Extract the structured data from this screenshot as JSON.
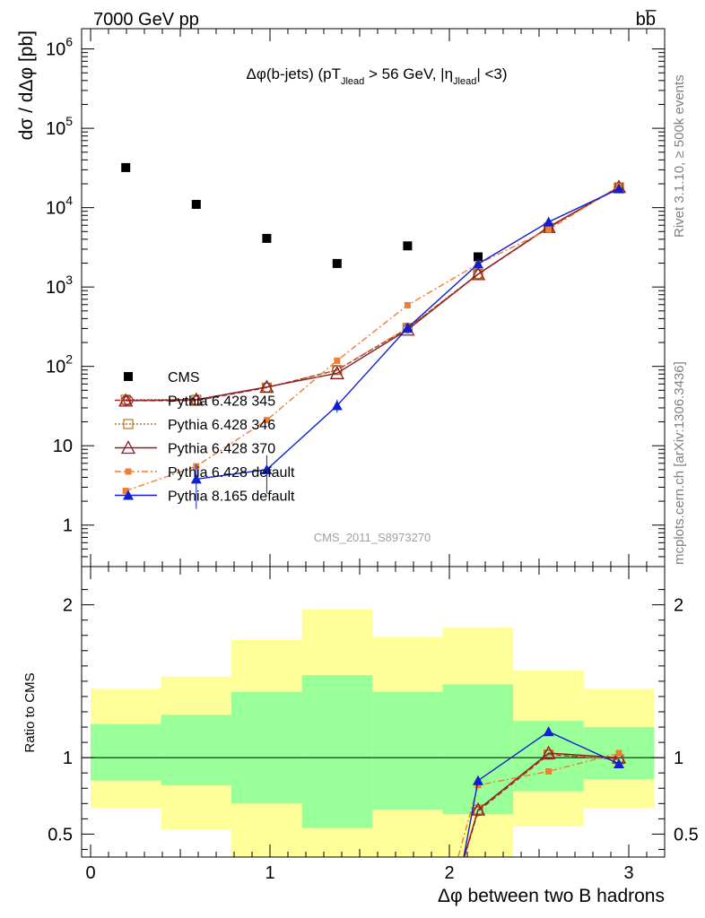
{
  "header": {
    "left": "7000 GeV pp",
    "right": "bb̅"
  },
  "side_labels": {
    "rivet": "Rivet 3.1.10, ≥ 500k events",
    "mcplots": "mcplots.cern.ch [arXiv:1306.3436]"
  },
  "chart_data": [
    {
      "type": "scatter",
      "title": "Δφ(b-jets) (pT_Jlead > 56 GeV, |η_Jlead| <3)",
      "title_parts": {
        "a": "Δφ(b-jets) (pT",
        "sub1": "Jlead",
        "b": " >  56 GeV, |η",
        "sub2": "Jlead",
        "c": "| <3)"
      },
      "ylabel": "dσ / dΔφ [pb]",
      "yscale": "log",
      "ylim": [
        0.3,
        1800000
      ],
      "xlim": [
        -0.05,
        3.2
      ],
      "watermark": "CMS_2011_S8973270",
      "y_ticks": [
        {
          "value": 1000000,
          "base": "10",
          "exp": "6"
        },
        {
          "value": 100000,
          "base": "10",
          "exp": "5"
        },
        {
          "value": 10000,
          "base": "10",
          "exp": "4"
        },
        {
          "value": 1000,
          "base": "10",
          "exp": "3"
        },
        {
          "value": 100,
          "base": "10",
          "exp": "2"
        },
        {
          "value": 10,
          "base": "10",
          "exp": ""
        },
        {
          "value": 1,
          "base": "1",
          "exp": ""
        }
      ],
      "bins": [
        0.0,
        0.393,
        0.785,
        1.178,
        1.571,
        1.963,
        2.356,
        2.749,
        3.142
      ],
      "series": [
        {
          "name": "CMS",
          "color": "#000000",
          "marker": "square",
          "line": "none",
          "x": [
            0.196,
            0.589,
            0.982,
            1.374,
            1.767,
            2.16,
            2.553,
            2.945
          ],
          "y": [
            32000,
            11000,
            4100,
            1980,
            3300,
            2400,
            5600,
            18000
          ]
        },
        {
          "name": "Pythia 6.428 345",
          "color": "#a0282a",
          "marker": "circle-open",
          "line": "dash",
          "x": [
            0.196,
            0.589,
            0.982,
            1.374,
            1.767,
            2.16,
            2.553,
            2.945
          ],
          "y": [
            37,
            37,
            54,
            90,
            300,
            1450,
            5600,
            18000
          ]
        },
        {
          "name": "Pythia 6.428 346",
          "color": "#b8741a",
          "marker": "square-open",
          "line": "dot",
          "x": [
            0.196,
            0.589,
            0.982,
            1.374,
            1.767,
            2.16,
            2.553,
            2.945
          ],
          "y": [
            38,
            38,
            54,
            90,
            305,
            1460,
            5600,
            18000
          ]
        },
        {
          "name": "Pythia 6.428 370",
          "color": "#8c1c22",
          "marker": "triangle-open",
          "line": "solid",
          "x": [
            0.196,
            0.589,
            0.982,
            1.374,
            1.767,
            2.16,
            2.553,
            2.945
          ],
          "y": [
            37,
            38,
            55,
            82,
            290,
            1450,
            5700,
            18200
          ]
        },
        {
          "name": "Pythia 6.428 default",
          "color": "#f47c30",
          "marker": "square-small",
          "line": "dashdot",
          "x": [
            0.196,
            0.589,
            0.982,
            1.374,
            1.767,
            2.16,
            2.553,
            2.945
          ],
          "y": [
            2.7,
            5.5,
            21,
            118,
            590,
            1950,
            5300,
            18500
          ]
        },
        {
          "name": "Pythia 8.165 default",
          "color": "#1020d0",
          "marker": "triangle",
          "line": "solid",
          "x": [
            0.196,
            0.589,
            0.982,
            1.374,
            1.767,
            2.16,
            2.553,
            2.945
          ],
          "y": [
            null,
            3.8,
            5,
            32,
            305,
            1950,
            6600,
            17300
          ],
          "err_low": [
            null,
            1.6,
            2.5,
            26,
            280,
            1850,
            6300,
            16800
          ],
          "err_high": [
            null,
            5.8,
            7.6,
            38,
            330,
            2050,
            6900,
            17800
          ]
        }
      ]
    },
    {
      "type": "line",
      "ylabel": "Ratio to CMS",
      "xlabel": "Δφ between two B hadrons",
      "ylim": [
        0.35,
        2.25
      ],
      "xlim": [
        -0.05,
        3.2
      ],
      "x_ticks": [
        "0",
        "1",
        "2",
        "3"
      ],
      "y_ticks": [
        "0.5",
        "1",
        "2"
      ],
      "y_tick_values": [
        0.5,
        1,
        2
      ],
      "band_outer": {
        "color": "#ffff99",
        "low": [
          0.67,
          0.53,
          0.35,
          0.35,
          0.35,
          0.35,
          0.55,
          0.67
        ],
        "high": [
          1.45,
          1.53,
          1.77,
          1.97,
          1.79,
          1.85,
          1.57,
          1.45
        ]
      },
      "band_inner": {
        "color": "#99ff99",
        "low": [
          0.85,
          0.82,
          0.7,
          0.54,
          0.66,
          0.63,
          0.78,
          0.86
        ],
        "high": [
          1.22,
          1.28,
          1.43,
          1.54,
          1.43,
          1.48,
          1.24,
          1.2
        ]
      },
      "series": [
        {
          "name": "Pythia 6.428 345",
          "color": "#a0282a",
          "line": "dash",
          "x": [
            2.02,
            2.16,
            2.553,
            2.945
          ],
          "y": [
            0.1,
            0.65,
            1.02,
            0.99
          ]
        },
        {
          "name": "Pythia 6.428 346",
          "color": "#b8741a",
          "line": "dot",
          "x": [
            2.02,
            2.16,
            2.553,
            2.945
          ],
          "y": [
            0.1,
            0.66,
            1.02,
            0.99
          ]
        },
        {
          "name": "Pythia 6.428 370",
          "color": "#8c1c22",
          "line": "solid",
          "x": [
            2.02,
            2.16,
            2.553,
            2.945
          ],
          "y": [
            0.1,
            0.66,
            1.03,
            1.0
          ]
        },
        {
          "name": "Pythia 6.428 default",
          "color": "#f47c30",
          "line": "dashdot",
          "x": [
            1.99,
            2.16,
            2.553,
            2.945
          ],
          "y": [
            0.1,
            0.82,
            0.91,
            1.03
          ]
        },
        {
          "name": "Pythia 8.165 default",
          "color": "#1020d0",
          "line": "solid",
          "x": [
            2.04,
            2.16,
            2.553,
            2.945
          ],
          "y": [
            0.1,
            0.85,
            1.17,
            0.96
          ]
        }
      ]
    }
  ]
}
